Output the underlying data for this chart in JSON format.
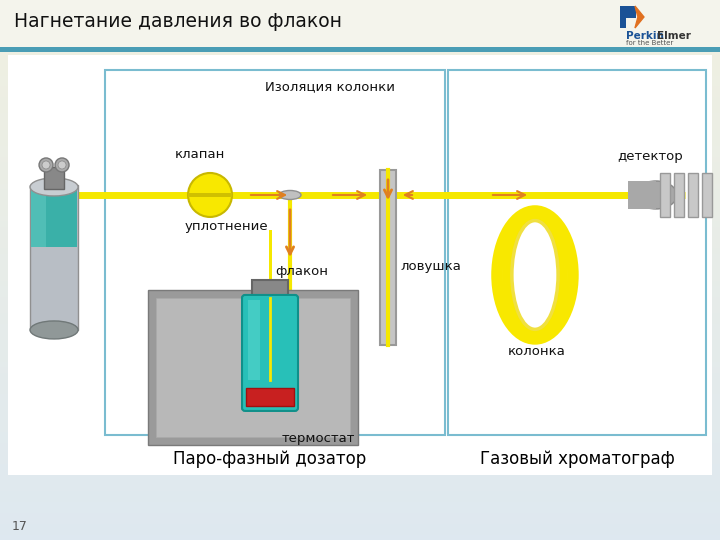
{
  "title": "Нагнетание давления во флакон",
  "bg_top": "#f0f0e8",
  "bg_bottom": "#e8eef4",
  "box1_label": "Паро-фазный дозатор",
  "box2_label": "Газовый хроматограф",
  "labels": {
    "klapan": "клапан",
    "izolyaciya": "Изоляция колонки",
    "uplot": "уплотнение",
    "flakon": "флакон",
    "lovushka": "ловушка",
    "termostat": "термостат",
    "detektor": "детектор",
    "kolonka": "колонка"
  },
  "line_color": "#f5e800",
  "arrow_color": "#e08020",
  "page_num": "17"
}
